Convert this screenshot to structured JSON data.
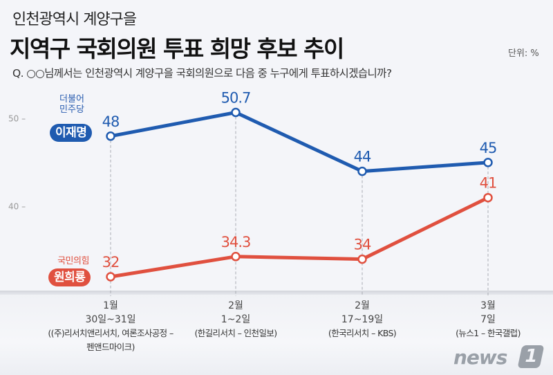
{
  "header": {
    "subtitle": "인천광역시 계양구을",
    "title": "지역구 국회의원 투표 희망 후보 추이",
    "unit": "단위: %",
    "question": "Q. ○○님께서는 인천광역시 계양구을 국회의원으로 다음 중 누구에게 투표하시겠습니까?"
  },
  "candidates": {
    "blue": {
      "party": "더불어 민주당",
      "party_line1": "더불어",
      "party_line2": "민주당",
      "name": "이재명",
      "color": "#1f5bb0"
    },
    "red": {
      "party": "국민의힘",
      "name": "원희룡",
      "color": "#e0503f"
    }
  },
  "x_labels": [
    {
      "month": "1월",
      "days": "30일~31일",
      "source_line1": "((주)리서치앤리서치, 여론조사공정 –",
      "source_line2": "펜앤드마이크)"
    },
    {
      "month": "2월",
      "days": "1~2일",
      "source_line1": "(한길리서치 – 인천일보)",
      "source_line2": ""
    },
    {
      "month": "2월",
      "days": "17~19일",
      "source_line1": "(한국리서치 – KBS)",
      "source_line2": ""
    },
    {
      "month": "3월",
      "days": "7일",
      "source_line1": "(뉴스1 – 한국갤럽)",
      "source_line2": ""
    }
  ],
  "logo": {
    "text": "news",
    "mark": "1"
  },
  "chart_data": {
    "type": "line",
    "title": "지역구 국회의원 투표 희망 후보 추이",
    "xlabel": "",
    "ylabel": "단위: %",
    "categories": [
      "1월 30일~31일",
      "2월 1~2일",
      "2월 17~19일",
      "3월 7일"
    ],
    "y_ticks": [
      40,
      50
    ],
    "y_tick_labels": [
      "40 –",
      "50 –"
    ],
    "ylim": [
      30,
      53
    ],
    "grid": false,
    "series": [
      {
        "name": "이재명",
        "party": "더불어민주당",
        "color": "#1f5bb0",
        "values": [
          48,
          50.7,
          44,
          45
        ],
        "labels": [
          "48",
          "50.7",
          "44",
          "45"
        ]
      },
      {
        "name": "원희룡",
        "party": "국민의힘",
        "color": "#e0503f",
        "values": [
          32,
          34.3,
          34,
          41
        ],
        "labels": [
          "32",
          "34.3",
          "34",
          "41"
        ]
      }
    ]
  }
}
